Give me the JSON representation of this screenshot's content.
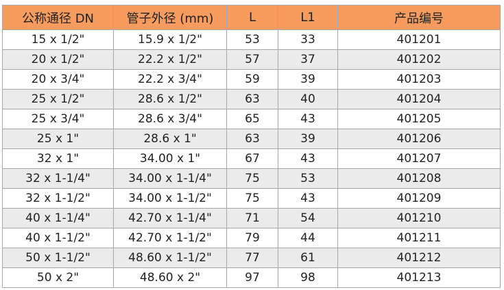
{
  "header_color": "#f79b5f",
  "columns": [
    "公称通径 DN",
    "管子外径 (mm)",
    "L",
    "L1",
    "产品编号"
  ],
  "rows": [
    [
      "15 x 1/2\"",
      "15.9 x 1/2\"",
      "53",
      "33",
      "401201"
    ],
    [
      "20 x 1/2\"",
      "22.2 x 1/2\"",
      "57",
      "37",
      "401202"
    ],
    [
      "20 x 3/4\"",
      "22.2 x 3/4\"",
      "59",
      "39",
      "401203"
    ],
    [
      "25 x 1/2\"",
      "28.6 x 1/2\"",
      "63",
      "40",
      "401204"
    ],
    [
      "25 x 3/4\"",
      "28.6 x 3/4\"",
      "65",
      "43",
      "401205"
    ],
    [
      "25 x 1\"",
      "28.6 x 1\"",
      "63",
      "39",
      "401206"
    ],
    [
      "32 x 1\"",
      "34.00 x 1\"",
      "67",
      "43",
      "401207"
    ],
    [
      "32 x 1-1/4\"",
      "34.00 x 1-1/4\"",
      "75",
      "53",
      "401208"
    ],
    [
      "32 x 1-1/2\"",
      "34.00 x 1-1/2\"",
      "75",
      "43",
      "401209"
    ],
    [
      "40 x 1-1/4\"",
      "42.70 x 1-1/4\"",
      "71",
      "54",
      "401210"
    ],
    [
      "40 x 1-1/2\"",
      "42.70 x 1-1/2\"",
      "79",
      "44",
      "401211"
    ],
    [
      "50 x 1-1/2\"",
      "48.60 x 1-1/2\"",
      "77",
      "61",
      "401212"
    ],
    [
      "50 x 2\"",
      "48.60 x 2\"",
      "97",
      "98",
      "401213"
    ]
  ]
}
